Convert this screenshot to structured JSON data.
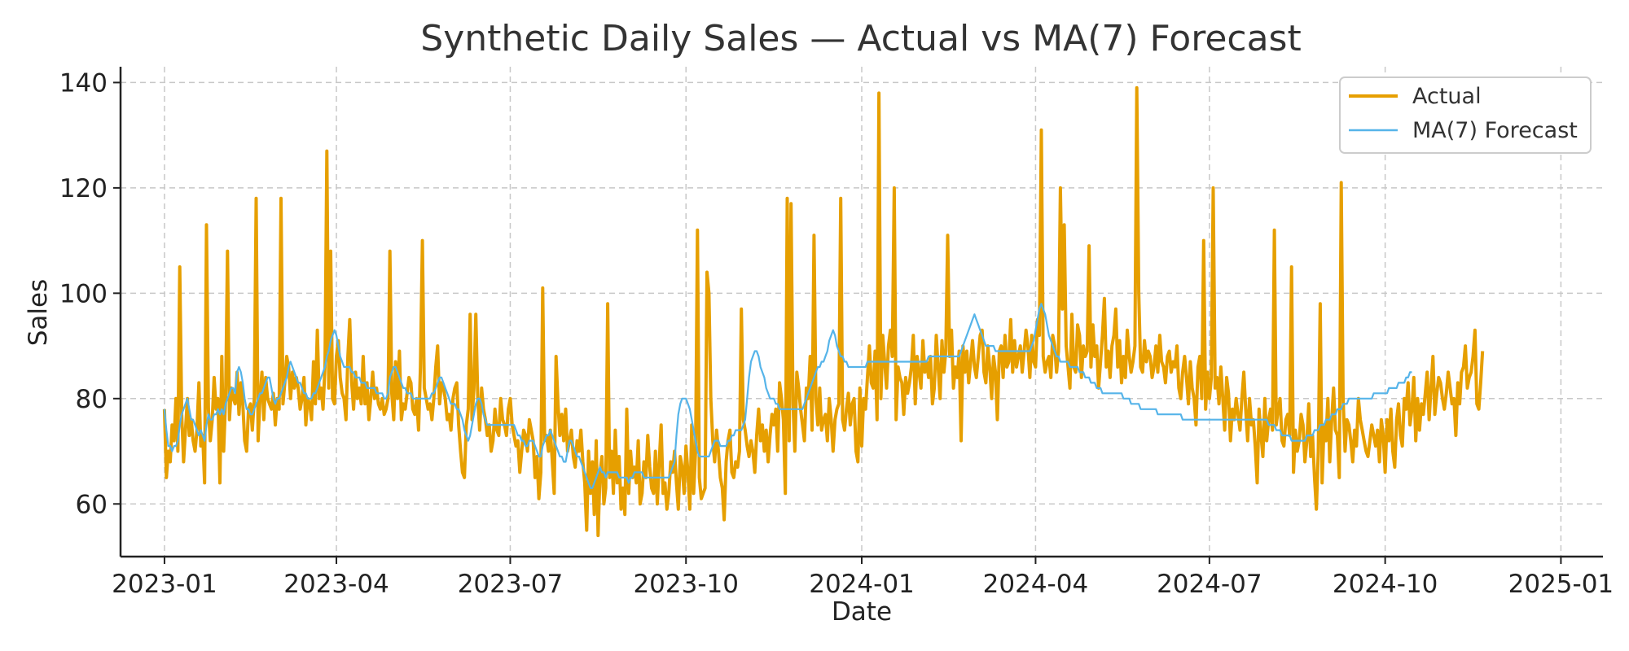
{
  "chart_data": {
    "type": "line",
    "title": "Synthetic Daily Sales — Actual vs MA(7) Forecast",
    "xlabel": "Date",
    "ylabel": "Sales",
    "xlim": [
      "2022-12-09",
      "2025-01-23"
    ],
    "ylim": [
      50,
      143
    ],
    "x_ticks": [
      "2023-01",
      "2023-04",
      "2023-07",
      "2023-10",
      "2024-01",
      "2024-04",
      "2024-07",
      "2024-10",
      "2025-01"
    ],
    "x_tick_dates": [
      "2023-01-01",
      "2023-04-01",
      "2023-07-01",
      "2023-10-01",
      "2024-01-01",
      "2024-04-01",
      "2024-07-01",
      "2024-10-01",
      "2025-01-01"
    ],
    "y_ticks": [
      60,
      80,
      100,
      120,
      140
    ],
    "grid": true,
    "legend_position": "top-right",
    "x_step_days": 1,
    "x_start": "2023-01-01",
    "series": [
      {
        "name": "Actual",
        "color": "#E69F00",
        "values": [
          78,
          65,
          70,
          68,
          75,
          72,
          80,
          70,
          105,
          77,
          68,
          74,
          80,
          73,
          76,
          72,
          70,
          74,
          83,
          71,
          73,
          64,
          113,
          78,
          72,
          76,
          84,
          78,
          80,
          64,
          88,
          70,
          80,
          108,
          76,
          82,
          80,
          79,
          85,
          77,
          83,
          79,
          72,
          70,
          78,
          79,
          74,
          80,
          118,
          72,
          80,
          85,
          76,
          84,
          80,
          79,
          78,
          81,
          75,
          80,
          78,
          118,
          79,
          83,
          88,
          86,
          80,
          85,
          82,
          84,
          82,
          78,
          80,
          84,
          75,
          80,
          79,
          76,
          87,
          79,
          93,
          80,
          82,
          78,
          86,
          127,
          82,
          108,
          80,
          79,
          88,
          91,
          84,
          81,
          80,
          76,
          88,
          95,
          83,
          78,
          85,
          80,
          82,
          79,
          88,
          79,
          83,
          76,
          80,
          85,
          80,
          82,
          79,
          78,
          80,
          77,
          78,
          80,
          108,
          81,
          76,
          87,
          80,
          89,
          76,
          79,
          78,
          81,
          84,
          83,
          78,
          77,
          80,
          74,
          86,
          110,
          82,
          80,
          78,
          79,
          76,
          80,
          86,
          90,
          79,
          83,
          82,
          80,
          76,
          77,
          74,
          80,
          82,
          83,
          75,
          70,
          66,
          65,
          75,
          78,
          96,
          76,
          82,
          96,
          80,
          74,
          82,
          78,
          76,
          73,
          75,
          70,
          72,
          78,
          74,
          73,
          80,
          76,
          75,
          73,
          78,
          80,
          75,
          73,
          71,
          72,
          66,
          70,
          74,
          73,
          70,
          76,
          74,
          72,
          65,
          69,
          61,
          66,
          101,
          72,
          73,
          70,
          74,
          68,
          62,
          88,
          79,
          73,
          77,
          72,
          78,
          70,
          72,
          74,
          69,
          67,
          72,
          70,
          74,
          68,
          64,
          55,
          70,
          62,
          68,
          58,
          72,
          54,
          66,
          69,
          60,
          63,
          98,
          65,
          70,
          62,
          74,
          64,
          69,
          59,
          63,
          58,
          78,
          62,
          70,
          65,
          67,
          64,
          72,
          60,
          62,
          68,
          65,
          73,
          67,
          63,
          62,
          70,
          60,
          68,
          75,
          62,
          64,
          59,
          62,
          68,
          66,
          70,
          64,
          59,
          69,
          67,
          62,
          71,
          66,
          59,
          75,
          62,
          70,
          112,
          65,
          61,
          62,
          63,
          104,
          100,
          80,
          72,
          68,
          74,
          70,
          65,
          63,
          57,
          68,
          72,
          74,
          66,
          65,
          68,
          67,
          70,
          97,
          76,
          74,
          71,
          69,
          72,
          70,
          66,
          73,
          78,
          72,
          75,
          70,
          74,
          68,
          73,
          77,
          75,
          78,
          70,
          83,
          80,
          76,
          62,
          118,
          72,
          117,
          79,
          70,
          85,
          82,
          78,
          75,
          72,
          82,
          80,
          88,
          74,
          111,
          80,
          75,
          82,
          74,
          76,
          77,
          72,
          80,
          76,
          70,
          76,
          78,
          79,
          118,
          76,
          74,
          78,
          81,
          75,
          79,
          80,
          70,
          68,
          82,
          71,
          80,
          78,
          84,
          90,
          83,
          82,
          89,
          76,
          138,
          80,
          92,
          87,
          82,
          90,
          93,
          88,
          120,
          76,
          86,
          84,
          83,
          77,
          84,
          81,
          83,
          86,
          92,
          79,
          88,
          85,
          82,
          91,
          85,
          87,
          84,
          88,
          79,
          82,
          92,
          86,
          80,
          91,
          85,
          89,
          111,
          88,
          93,
          82,
          86,
          84,
          89,
          72,
          90,
          85,
          89,
          83,
          87,
          91,
          86,
          84,
          88,
          92,
          93,
          85,
          83,
          90,
          86,
          80,
          88,
          85,
          76,
          89,
          90,
          84,
          92,
          86,
          87,
          95,
          85,
          91,
          86,
          88,
          90,
          85,
          89,
          93,
          90,
          84,
          92,
          87,
          86,
          95,
          92,
          131,
          88,
          85,
          87,
          88,
          84,
          92,
          90,
          85,
          89,
          120,
          97,
          113,
          90,
          86,
          82,
          96,
          86,
          85,
          94,
          92,
          84,
          90,
          88,
          89,
          109,
          86,
          94,
          88,
          90,
          82,
          87,
          92,
          99,
          86,
          89,
          84,
          90,
          92,
          97,
          86,
          91,
          83,
          88,
          84,
          93,
          88,
          85,
          87,
          90,
          139,
          100,
          86,
          85,
          91,
          87,
          89,
          88,
          84,
          86,
          90,
          85,
          92,
          87,
          86,
          83,
          88,
          89,
          85,
          87,
          86,
          90,
          82,
          80,
          85,
          88,
          84,
          79,
          87,
          82,
          80,
          75,
          86,
          88,
          80,
          110,
          78,
          85,
          80,
          84,
          120,
          82,
          84,
          79,
          86,
          80,
          74,
          84,
          81,
          72,
          78,
          76,
          80,
          77,
          74,
          80,
          85,
          78,
          72,
          80,
          75,
          76,
          71,
          64,
          78,
          73,
          69,
          80,
          72,
          76,
          78,
          74,
          112,
          75,
          78,
          80,
          72,
          71,
          76,
          77,
          73,
          105,
          66,
          74,
          70,
          72,
          77,
          75,
          68,
          72,
          79,
          69,
          73,
          65,
          59,
          70,
          98,
          64,
          75,
          72,
          80,
          68,
          76,
          82,
          74,
          73,
          65,
          121,
          80,
          70,
          76,
          75,
          72,
          68,
          74,
          71,
          80,
          76,
          74,
          72,
          70,
          69,
          72,
          75,
          73,
          71,
          74,
          68,
          76,
          73,
          66,
          76,
          72,
          78,
          70,
          67,
          76,
          79,
          73,
          71,
          80,
          78,
          83,
          75,
          78,
          84,
          72,
          80,
          74,
          79,
          77,
          81,
          85,
          76,
          82,
          88,
          77,
          81,
          84,
          83,
          80,
          78,
          81,
          85,
          82,
          79,
          80,
          73,
          83,
          79,
          85,
          86,
          90,
          82,
          84,
          85,
          88,
          93,
          79,
          78,
          83,
          89
        ]
      },
      {
        "name": "MA(7) Forecast",
        "color": "#56B4E9",
        "values": [
          78,
          74,
          71,
          71,
          70,
          71,
          71,
          72,
          75,
          77,
          78,
          79,
          80,
          78,
          76,
          76,
          75,
          74,
          73,
          74,
          73,
          72,
          75,
          77,
          76,
          76,
          77,
          77,
          78,
          77,
          78,
          77,
          79,
          80,
          81,
          82,
          82,
          81,
          85,
          86,
          85,
          83,
          80,
          78,
          78,
          77,
          77,
          78,
          79,
          80,
          81,
          81,
          82,
          83,
          84,
          84,
          82,
          80,
          79,
          80,
          80,
          81,
          82,
          83,
          84,
          86,
          87,
          86,
          85,
          84,
          83,
          83,
          82,
          81,
          81,
          80,
          80,
          80,
          81,
          81,
          82,
          83,
          84,
          85,
          86,
          88,
          89,
          91,
          92,
          93,
          92,
          90,
          88,
          87,
          86,
          86,
          86,
          86,
          85,
          85,
          84,
          84,
          84,
          83,
          83,
          83,
          82,
          82,
          82,
          82,
          82,
          81,
          81,
          81,
          81,
          80,
          80,
          81,
          84,
          85,
          86,
          86,
          85,
          84,
          83,
          82,
          82,
          81,
          81,
          81,
          80,
          80,
          80,
          80,
          80,
          80,
          80,
          80,
          80,
          80,
          81,
          81,
          82,
          83,
          84,
          84,
          83,
          82,
          81,
          80,
          79,
          79,
          79,
          78,
          78,
          77,
          76,
          74,
          73,
          72,
          73,
          75,
          77,
          79,
          80,
          80,
          79,
          77,
          76,
          75,
          75,
          75,
          75,
          75,
          75,
          75,
          75,
          75,
          75,
          75,
          75,
          75,
          75,
          75,
          74,
          73,
          73,
          72,
          72,
          71,
          71,
          72,
          72,
          72,
          71,
          70,
          69,
          69,
          71,
          72,
          73,
          73,
          74,
          73,
          72,
          71,
          70,
          69,
          69,
          68,
          68,
          70,
          72,
          72,
          71,
          70,
          69,
          69,
          68,
          67,
          66,
          65,
          64,
          63,
          63,
          64,
          65,
          66,
          67,
          66,
          66,
          65,
          66,
          66,
          66,
          66,
          66,
          66,
          65,
          65,
          65,
          65,
          65,
          64,
          65,
          65,
          66,
          66,
          66,
          66,
          66,
          65,
          65,
          65,
          65,
          65,
          65,
          65,
          65,
          65,
          65,
          65,
          65,
          65,
          65,
          66,
          67,
          68,
          73,
          77,
          79,
          80,
          80,
          80,
          79,
          78,
          76,
          74,
          72,
          70,
          69,
          69,
          69,
          69,
          69,
          69,
          70,
          71,
          72,
          72,
          72,
          71,
          71,
          71,
          71,
          72,
          72,
          73,
          73,
          74,
          74,
          74,
          74,
          75,
          76,
          80,
          84,
          87,
          88,
          89,
          89,
          88,
          86,
          85,
          84,
          82,
          81,
          80,
          80,
          80,
          79,
          79,
          78,
          78,
          78,
          78,
          78,
          78,
          78,
          78,
          78,
          78,
          78,
          78,
          78,
          79,
          80,
          81,
          82,
          83,
          84,
          85,
          86,
          86,
          87,
          87,
          88,
          89,
          91,
          92,
          93,
          92,
          90,
          89,
          88,
          88,
          87,
          87,
          86,
          86,
          86,
          86,
          86,
          86,
          86,
          86,
          86,
          86,
          87,
          87,
          87,
          87,
          87,
          87,
          87,
          87,
          87,
          87,
          87,
          87,
          87,
          87,
          87,
          87,
          87,
          87,
          87,
          87,
          87,
          87,
          87,
          87,
          87,
          87,
          87,
          87,
          87,
          87,
          87,
          87,
          88,
          88,
          88,
          88,
          88,
          88,
          88,
          88,
          88,
          88,
          88,
          88,
          88,
          88,
          88,
          88,
          88,
          89,
          90,
          91,
          92,
          93,
          94,
          95,
          96,
          95,
          94,
          93,
          92,
          91,
          90,
          90,
          90,
          90,
          90,
          89,
          89,
          89,
          89,
          89,
          89,
          89,
          89,
          89,
          89,
          89,
          89,
          89,
          89,
          89,
          89,
          89,
          89,
          89,
          90,
          91,
          93,
          95,
          97,
          98,
          97,
          96,
          94,
          92,
          91,
          90,
          89,
          88,
          88,
          87,
          87,
          87,
          87,
          87,
          86,
          86,
          86,
          86,
          86,
          85,
          85,
          85,
          84,
          84,
          84,
          83,
          83,
          83,
          82,
          82,
          82,
          81,
          81,
          81,
          81,
          81,
          81,
          81,
          81,
          81,
          81,
          81,
          80,
          80,
          80,
          80,
          79,
          79,
          79,
          79,
          79,
          78,
          78,
          78,
          78,
          78,
          78,
          78,
          78,
          78,
          77,
          77,
          77,
          77,
          77,
          77,
          77,
          77,
          77,
          77,
          77,
          77,
          77,
          76,
          76,
          76,
          76,
          76,
          76,
          76,
          76,
          76,
          76,
          76,
          76,
          76,
          76,
          76,
          76,
          76,
          76,
          76,
          76,
          76,
          76,
          76,
          76,
          76,
          76,
          76,
          76,
          76,
          76,
          76,
          76,
          76,
          76,
          76,
          76,
          76,
          76,
          76,
          76,
          76,
          76,
          76,
          76,
          76,
          75,
          75,
          75,
          75,
          74,
          74,
          74,
          73,
          73,
          73,
          73,
          73,
          72,
          72,
          72,
          72,
          72,
          72,
          72,
          72,
          73,
          73,
          73,
          73,
          74,
          74,
          74,
          75,
          75,
          75,
          76,
          76,
          76,
          77,
          77,
          77,
          78,
          78,
          78,
          79,
          79,
          79,
          80,
          80,
          80,
          80,
          80,
          80,
          80,
          80,
          80,
          80,
          80,
          80,
          80,
          81,
          81,
          81,
          81,
          81,
          81,
          81,
          81,
          82,
          82,
          82,
          82,
          82,
          83,
          83,
          83,
          83,
          84,
          84,
          85,
          85
        ]
      }
    ]
  }
}
